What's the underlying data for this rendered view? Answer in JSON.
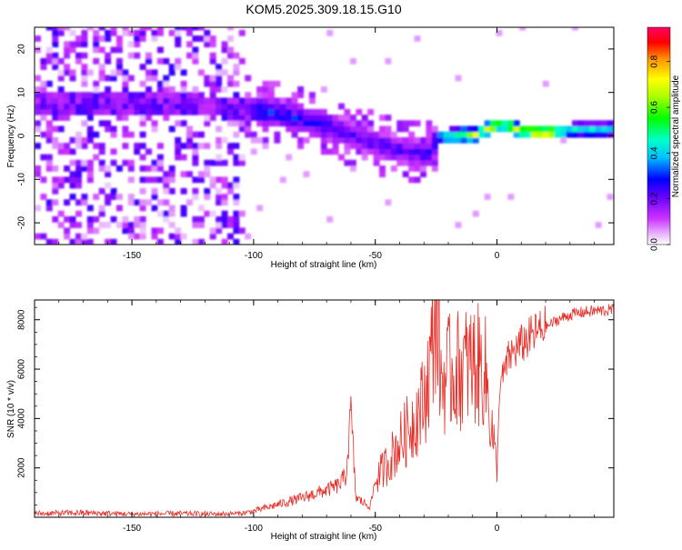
{
  "title": "KOM5.2025.309.18.15.G10",
  "chart_data": [
    {
      "type": "heatmap",
      "name": "spectrogram",
      "xlabel": "Height of straight line (km)",
      "ylabel": "Frequency (Hz)",
      "xlim": [
        -190,
        48
      ],
      "ylim": [
        -25,
        25
      ],
      "xticks": [
        -150,
        -100,
        -50,
        0
      ],
      "xtick_labels": [
        "-150",
        "-100",
        "-50",
        "0"
      ],
      "yticks": [
        -20,
        -10,
        0,
        10,
        20
      ],
      "ytick_labels": [
        "-20",
        "-10",
        "0",
        "10",
        "20"
      ],
      "colorbar": {
        "label": "Normalized spectral amplitude",
        "range": [
          0,
          0.95
        ],
        "ticks": [
          0.0,
          0.2,
          0.4,
          0.6,
          0.8
        ],
        "tick_labels": [
          "0.0",
          "0.2",
          "0.4",
          "0.6",
          "0.8"
        ],
        "colors": [
          "#ffffff",
          "#cc33ff",
          "#6600ff",
          "#0000ff",
          "#00bfff",
          "#00ffcc",
          "#00ff00",
          "#aaff00",
          "#ffff00",
          "#ff9900",
          "#ff0000",
          "#ff0066"
        ]
      },
      "ridge": {
        "x": [
          -190,
          -170,
          -150,
          -130,
          -110,
          -100,
          -90,
          -80,
          -70,
          -60,
          -50,
          -40,
          -30,
          -25,
          -20,
          -10,
          0,
          10,
          20,
          30,
          48
        ],
        "freq": [
          6.5,
          6.8,
          7.0,
          6.5,
          6.0,
          5.5,
          4.5,
          3.0,
          1.5,
          -0.5,
          -2.5,
          -4.0,
          -5.0,
          -1.0,
          -0.5,
          -0.3,
          2.0,
          0.5,
          0.0,
          0.8,
          1.0
        ],
        "amplitude": [
          0.1,
          0.1,
          0.12,
          0.12,
          0.15,
          0.35,
          0.3,
          0.3,
          0.3,
          0.25,
          0.25,
          0.25,
          0.25,
          0.4,
          0.6,
          0.7,
          0.75,
          0.8,
          0.85,
          0.5,
          0.45
        ]
      }
    },
    {
      "type": "line",
      "name": "snr",
      "xlabel": "Height of straight line (km)",
      "ylabel": "SNR (10 * v/v)",
      "xlim": [
        -190,
        48
      ],
      "ylim": [
        0,
        8800
      ],
      "xticks": [
        -150,
        -100,
        -50,
        0
      ],
      "xtick_labels": [
        "-150",
        "-100",
        "-50",
        "0"
      ],
      "yticks": [
        2000,
        4000,
        6000,
        8000
      ],
      "ytick_labels": [
        "2000",
        "4000",
        "6000",
        "8000"
      ],
      "color": "#e8302a",
      "x": [
        -190,
        -170,
        -150,
        -130,
        -115,
        -105,
        -100,
        -95,
        -90,
        -85,
        -80,
        -75,
        -70,
        -65,
        -62,
        -60,
        -58,
        -55,
        -52,
        -50,
        -45,
        -40,
        -35,
        -30,
        -27,
        -25,
        -23,
        -20,
        -15,
        -10,
        -5,
        -1,
        0,
        1,
        5,
        10,
        15,
        20,
        25,
        30,
        35,
        40,
        48
      ],
      "y": [
        150,
        180,
        130,
        150,
        130,
        160,
        250,
        380,
        520,
        650,
        780,
        950,
        1100,
        1300,
        1700,
        4300,
        800,
        600,
        450,
        1500,
        2200,
        3000,
        3800,
        4700,
        6500,
        8800,
        5500,
        5800,
        6000,
        6200,
        6000,
        2700,
        1600,
        5200,
        6500,
        7000,
        7400,
        7700,
        8000,
        8200,
        8300,
        8350,
        8400
      ]
    }
  ]
}
